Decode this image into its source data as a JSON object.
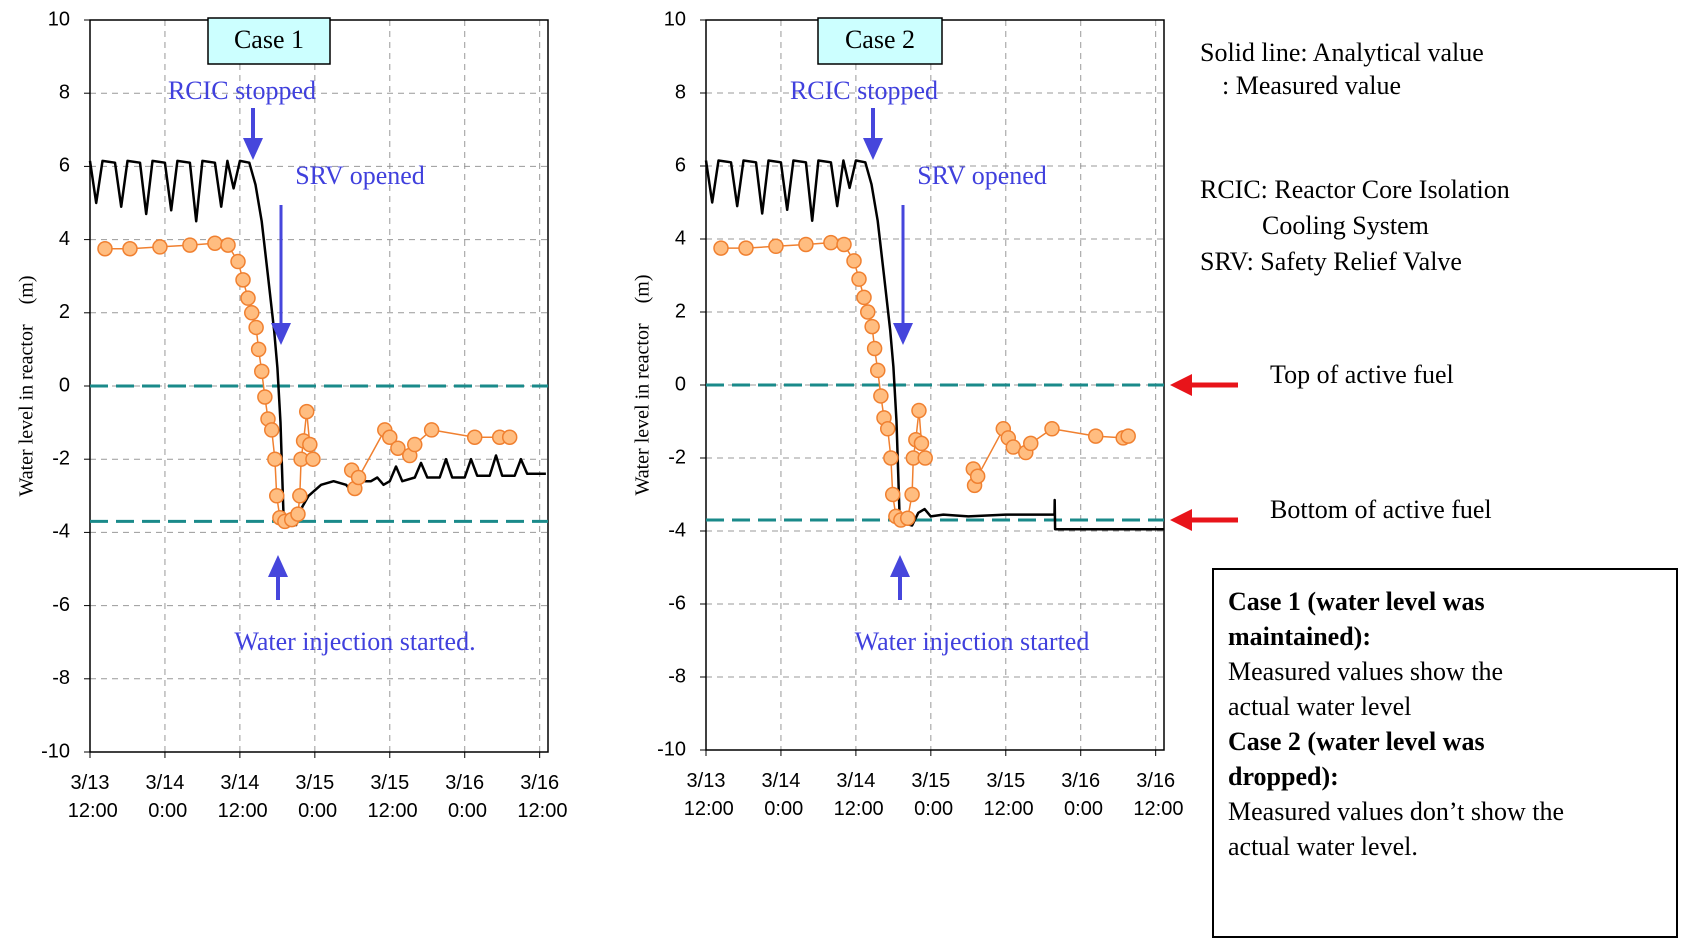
{
  "chart_data": [
    {
      "type": "line",
      "title": "Case 1",
      "y_label": "Water level in reactor    (m)",
      "xlim": [
        "3/13 12:00",
        "3/16 13:20"
      ],
      "xticks": [
        "3/13 12:00",
        "3/14 0:00",
        "3/14 12:00",
        "3/15 0:00",
        "3/15 12:00",
        "3/16 0:00",
        "3/16 12:00"
      ],
      "ylim": [
        -10,
        10
      ],
      "yticks": [
        -10,
        -8,
        -6,
        -4,
        -2,
        0,
        2,
        4,
        6,
        8,
        10
      ],
      "grid": true,
      "reference_lines": [
        {
          "value": 0
        },
        {
          "value": -3.7
        }
      ],
      "annotations": [
        "RCIC stopped",
        "SRV opened",
        "Water injection started."
      ],
      "series": [
        {
          "color": "#000000",
          "marker": "none",
          "x": [
            "3/13 12:00",
            "3/13 13:00",
            "3/13 14:00",
            "3/13 16:00",
            "3/13 17:00",
            "3/13 18:00",
            "3/13 20:00",
            "3/13 21:00",
            "3/13 22:00",
            "3/14 0:00",
            "3/14 1:00",
            "3/14 2:00",
            "3/14 4:00",
            "3/14 5:00",
            "3/14 6:00",
            "3/14 8:00",
            "3/14 9:00",
            "3/14 10:00",
            "3/14 11:00",
            "3/14 12:00",
            "3/14 13:30",
            "3/14 14:30",
            "3/14 15:30",
            "3/14 16:30",
            "3/14 17:30",
            "3/14 18:00",
            "3/14 18:30",
            "3/14 19:00",
            "3/14 20:00",
            "3/14 21:00",
            "3/14 22:00",
            "3/14 23:00",
            "3/15 1:00",
            "3/15 3:00",
            "3/15 5:00",
            "3/15 6:00",
            "3/15 7:00",
            "3/15 9:00",
            "3/15 10:00",
            "3/15 11:00",
            "3/15 12:00",
            "3/15 13:00",
            "3/15 14:00",
            "3/15 16:00",
            "3/15 17:00",
            "3/15 18:00",
            "3/15 20:00",
            "3/15 21:00",
            "3/15 22:00",
            "3/16 0:00",
            "3/16 1:00",
            "3/16 2:00",
            "3/16 4:00",
            "3/16 5:00",
            "3/16 6:00",
            "3/16 8:00",
            "3/16 9:00",
            "3/16 10:00",
            "3/16 13:00"
          ],
          "values": [
            6.15,
            5.0,
            6.15,
            6.1,
            4.9,
            6.15,
            6.1,
            4.7,
            6.15,
            6.1,
            4.8,
            6.15,
            6.1,
            4.5,
            6.15,
            6.1,
            4.9,
            6.15,
            5.4,
            6.15,
            6.1,
            5.5,
            4.5,
            3.0,
            1.5,
            0.5,
            -1.0,
            -3.6,
            -3.75,
            -3.8,
            -3.3,
            -3.0,
            -2.7,
            -2.6,
            -2.7,
            -2.9,
            -2.6,
            -2.6,
            -2.5,
            -2.7,
            -2.6,
            -2.2,
            -2.6,
            -2.5,
            -2.1,
            -2.5,
            -2.5,
            -2.0,
            -2.5,
            -2.5,
            -2.0,
            -2.45,
            -2.45,
            -1.9,
            -2.45,
            -2.45,
            -2.0,
            -2.4,
            -2.4
          ]
        },
        {
          "color": "#f08030",
          "marker": "circle",
          "x": [
            "3/13 14:24",
            "3/13 18:24",
            "3/13 23:12",
            "3/14 4:00",
            "3/14 8:00",
            "3/14 10:06",
            "3/14 11:42",
            "3/14 12:30",
            "3/14 13:18",
            "3/14 13:54",
            "3/14 14:36",
            "3/14 15:00",
            "3/14 15:30",
            "3/14 16:00",
            "3/14 16:30",
            "3/14 17:06",
            "3/14 17:36",
            "3/14 17:54",
            "3/14 18:24",
            "3/14 19:12",
            "3/14 20:18",
            "3/14 21:18",
            "3/14 21:36",
            "3/14 21:48",
            "3/14 22:12",
            "3/14 22:42",
            "3/14 23:12",
            "3/14 23:42",
            null,
            "3/15 5:54",
            "3/15 6:24",
            "3/15 7:00",
            "3/15 11:12",
            "3/15 12:00",
            "3/15 13:18",
            "3/15 15:12",
            "3/15 16:00",
            "3/15 18:42",
            "3/16 1:36",
            "3/16 5:36",
            "3/16 7:12"
          ],
          "values": [
            3.75,
            3.75,
            3.8,
            3.85,
            3.9,
            3.85,
            3.4,
            2.9,
            2.4,
            2.0,
            1.6,
            1.0,
            0.4,
            -0.3,
            -0.9,
            -1.2,
            -2.0,
            -3.0,
            -3.6,
            -3.7,
            -3.65,
            -3.5,
            -3.0,
            -2.0,
            -1.5,
            -0.7,
            -1.6,
            -2.0,
            null,
            -2.3,
            -2.8,
            -2.5,
            -1.2,
            -1.4,
            -1.7,
            -1.9,
            -1.6,
            -1.2,
            -1.4,
            -1.4,
            -1.4
          ]
        }
      ]
    },
    {
      "type": "line",
      "title": "Case 2",
      "y_label": "Water level in reactor    (m)",
      "xlim": [
        "3/13 12:00",
        "3/16 13:20"
      ],
      "xticks": [
        "3/13 12:00",
        "3/14 0:00",
        "3/14 12:00",
        "3/15 0:00",
        "3/15 12:00",
        "3/16 0:00",
        "3/16 12:00"
      ],
      "ylim": [
        -10,
        10
      ],
      "yticks": [
        -10,
        -8,
        -6,
        -4,
        -2,
        0,
        2,
        4,
        6,
        8,
        10
      ],
      "grid": true,
      "reference_lines": [
        {
          "value": 0,
          "label": "Top of active fuel"
        },
        {
          "value": -3.7,
          "label": "Bottom of active fuel"
        }
      ],
      "annotations": [
        "RCIC stopped",
        "SRV opened",
        "Water injection started"
      ],
      "series": [
        {
          "color": "#000000",
          "marker": "none",
          "x": [
            "3/13 12:00",
            "3/13 13:00",
            "3/13 14:00",
            "3/13 16:00",
            "3/13 17:00",
            "3/13 18:00",
            "3/13 20:00",
            "3/13 21:00",
            "3/13 22:00",
            "3/14 0:00",
            "3/14 1:00",
            "3/14 2:00",
            "3/14 4:00",
            "3/14 5:00",
            "3/14 6:00",
            "3/14 8:00",
            "3/14 9:00",
            "3/14 10:00",
            "3/14 11:00",
            "3/14 12:00",
            "3/14 13:30",
            "3/14 14:30",
            "3/14 15:30",
            "3/14 16:30",
            "3/14 17:30",
            "3/14 18:00",
            "3/14 18:30",
            "3/14 19:00",
            "3/14 20:00",
            "3/14 21:00",
            "3/14 22:00",
            "3/14 23:00",
            "3/15 0:00",
            "3/15 2:00",
            "3/15 6:00",
            "3/15 12:00",
            "3/15 19:48",
            "3/15 19:50",
            "3/15 19:54",
            "3/16 13:20"
          ],
          "values": [
            6.15,
            5.0,
            6.15,
            6.1,
            4.9,
            6.15,
            6.1,
            4.7,
            6.15,
            6.1,
            4.8,
            6.15,
            6.1,
            4.5,
            6.15,
            6.1,
            4.9,
            6.15,
            5.4,
            6.15,
            6.1,
            5.5,
            4.5,
            3.0,
            1.5,
            0.5,
            -1.0,
            -3.6,
            -3.8,
            -3.85,
            -3.5,
            -3.4,
            -3.6,
            -3.55,
            -3.6,
            -3.55,
            -3.55,
            -3.15,
            -3.95,
            -3.95
          ]
        },
        {
          "color": "#f08030",
          "marker": "circle",
          "x": [
            "3/13 14:24",
            "3/13 18:24",
            "3/13 23:12",
            "3/14 4:00",
            "3/14 8:00",
            "3/14 10:06",
            "3/14 11:42",
            "3/14 12:30",
            "3/14 13:18",
            "3/14 13:54",
            "3/14 14:36",
            "3/14 15:00",
            "3/14 15:30",
            "3/14 16:00",
            "3/14 16:30",
            "3/14 17:06",
            "3/14 17:36",
            "3/14 17:54",
            "3/14 18:24",
            "3/14 19:12",
            "3/14 20:18",
            "3/14 21:00",
            "3/14 21:12",
            "3/14 21:36",
            "3/14 22:06",
            "3/14 22:30",
            "3/14 23:06",
            null,
            "3/15 6:48",
            "3/15 7:00",
            "3/15 7:30",
            "3/15 11:36",
            "3/15 12:24",
            "3/15 13:12",
            "3/15 15:12",
            "3/15 16:00",
            "3/15 19:24",
            "3/16 2:24",
            "3/16 6:48",
            "3/16 7:36"
          ],
          "values": [
            3.75,
            3.75,
            3.8,
            3.85,
            3.9,
            3.85,
            3.4,
            2.9,
            2.4,
            2.0,
            1.6,
            1.0,
            0.4,
            -0.3,
            -0.9,
            -1.2,
            -2.0,
            -3.0,
            -3.6,
            -3.7,
            -3.65,
            -3.0,
            -2.0,
            -1.5,
            -0.7,
            -1.6,
            -2.0,
            null,
            -2.3,
            -2.75,
            -2.5,
            -1.2,
            -1.45,
            -1.7,
            -1.85,
            -1.6,
            -1.2,
            -1.4,
            -1.45,
            -1.4
          ]
        }
      ]
    }
  ],
  "legend": [
    "Solid line: Analytical value",
    ": Measured value"
  ],
  "abbreviations": [
    "RCIC: Reactor Core Isolation",
    "Cooling System",
    "SRV: Safety Relief Valve"
  ],
  "notes": [
    {
      "heading": "Case 1 (water level was maintained):",
      "text": "Measured values show the actual water level"
    },
    {
      "heading": "Case 2 (water level was dropped):",
      "text": "Measured values don’t show the actual water level."
    }
  ]
}
